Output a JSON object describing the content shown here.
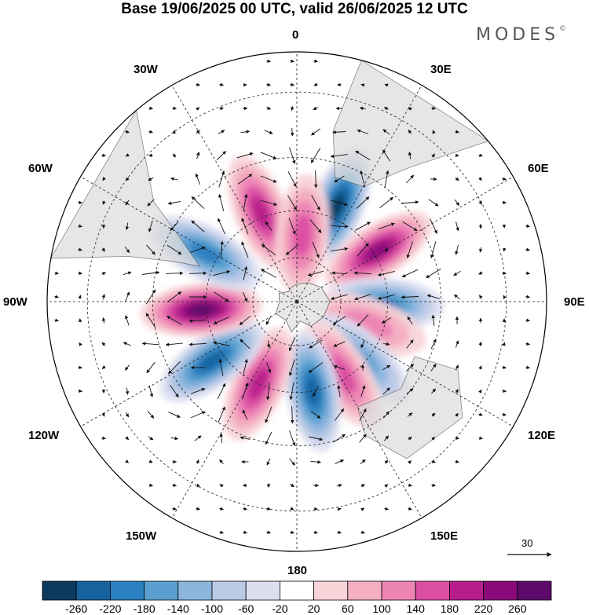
{
  "title": "Base 19/06/2025 00 UTC, valid 26/06/2025 12 UTC",
  "brand": "MODES",
  "brand_mark": "©",
  "longitude_labels": [
    "0",
    "30E",
    "60E",
    "90E",
    "120E",
    "150E",
    "180",
    "150W",
    "120W",
    "90W",
    "60W",
    "30W"
  ],
  "reference_vector_value": "30",
  "colorbar": {
    "ticks": [
      "-260",
      "-220",
      "-180",
      "-140",
      "-100",
      "-60",
      "-20",
      "20",
      "60",
      "100",
      "140",
      "180",
      "220",
      "260"
    ],
    "colors": [
      "#0b3a5e",
      "#1763a0",
      "#2a80c0",
      "#5a9fd0",
      "#8db6de",
      "#bac9e6",
      "#dcdff0",
      "#ffffff",
      "#f8d4d8",
      "#f4afc2",
      "#ec84b4",
      "#dc4ea3",
      "#b81d8c",
      "#8a0a7a",
      "#5e0a6a"
    ]
  },
  "map": {
    "projection": "south-polar-stereographic",
    "anomaly_centers": [
      {
        "lon_deg": 23,
        "colat_deg": 45,
        "value": -240
      },
      {
        "lon_deg": 58,
        "colat_deg": 42,
        "value": 230
      },
      {
        "lon_deg": 92,
        "colat_deg": 38,
        "value": -170
      },
      {
        "lon_deg": 108,
        "colat_deg": 33,
        "value": 110
      },
      {
        "lon_deg": 132,
        "colat_deg": 38,
        "value": -130
      },
      {
        "lon_deg": 148,
        "colat_deg": 38,
        "value": 130
      },
      {
        "lon_deg": 170,
        "colat_deg": 40,
        "value": -200
      },
      {
        "lon_deg": -155,
        "colat_deg": 40,
        "value": 190
      },
      {
        "lon_deg": -125,
        "colat_deg": 45,
        "value": -220
      },
      {
        "lon_deg": -95,
        "colat_deg": 42,
        "value": 250
      },
      {
        "lon_deg": -62,
        "colat_deg": 45,
        "value": -160
      },
      {
        "lon_deg": -22,
        "colat_deg": 42,
        "value": 170
      },
      {
        "lon_deg": 5,
        "colat_deg": 30,
        "value": 150
      }
    ]
  }
}
